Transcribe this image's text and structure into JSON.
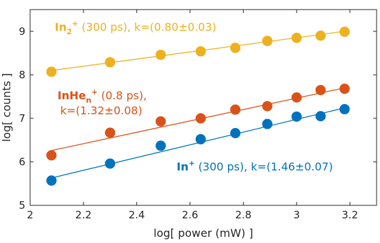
{
  "chart_data": {
    "type": "scatter",
    "xlabel": "log[ power (mW) ]",
    "ylabel": "log[ counts ]",
    "xlim": [
      2,
      3.3
    ],
    "ylim": [
      5,
      9.5
    ],
    "xticks": [
      "2",
      "2.2",
      "2.4",
      "2.6",
      "2.8",
      "3",
      "3.2"
    ],
    "yticks": [
      "5",
      "6",
      "7",
      "8",
      "9"
    ],
    "grid": false,
    "series": [
      {
        "name": "In2+",
        "color": "#EDB120",
        "x": [
          2.08,
          2.3,
          2.49,
          2.64,
          2.77,
          2.89,
          3.0,
          3.09,
          3.18
        ],
        "y": [
          8.07,
          8.29,
          8.46,
          8.54,
          8.62,
          8.78,
          8.85,
          8.9,
          8.99
        ],
        "fit": {
          "x": [
            2.08,
            3.18
          ],
          "y": [
            8.1,
            9.0
          ]
        }
      },
      {
        "name": "InHen+",
        "color": "#D95319",
        "x": [
          2.08,
          2.3,
          2.49,
          2.64,
          2.77,
          2.89,
          3.0,
          3.09,
          3.18
        ],
        "y": [
          6.15,
          6.67,
          6.93,
          7.0,
          7.2,
          7.28,
          7.48,
          7.65,
          7.68
        ],
        "fit": {
          "x": [
            2.08,
            3.18
          ],
          "y": [
            6.26,
            7.7
          ]
        }
      },
      {
        "name": "In+",
        "color": "#0072BD",
        "x": [
          2.08,
          2.3,
          2.49,
          2.64,
          2.77,
          2.89,
          3.0,
          3.09,
          3.18
        ],
        "y": [
          5.57,
          5.96,
          6.37,
          6.52,
          6.66,
          6.87,
          7.04,
          7.05,
          7.21
        ],
        "fit": {
          "x": [
            2.08,
            3.18
          ],
          "y": [
            5.63,
            7.24
          ]
        }
      }
    ],
    "annotations": {
      "in2": {
        "species": "In",
        "sub": "2",
        "sup": "+",
        "rest": "  (300 ps), k=(0.80±0.03)"
      },
      "inhen_line1": {
        "species": "InHe",
        "sub": "n",
        "sup": "+",
        "rest": " (0.8 ps),"
      },
      "inhen_line2": "k=(1.32±0.08)",
      "in1": {
        "species": "In",
        "sup": "+",
        "rest": " (300 ps), k=(1.46±0.07)"
      }
    }
  }
}
